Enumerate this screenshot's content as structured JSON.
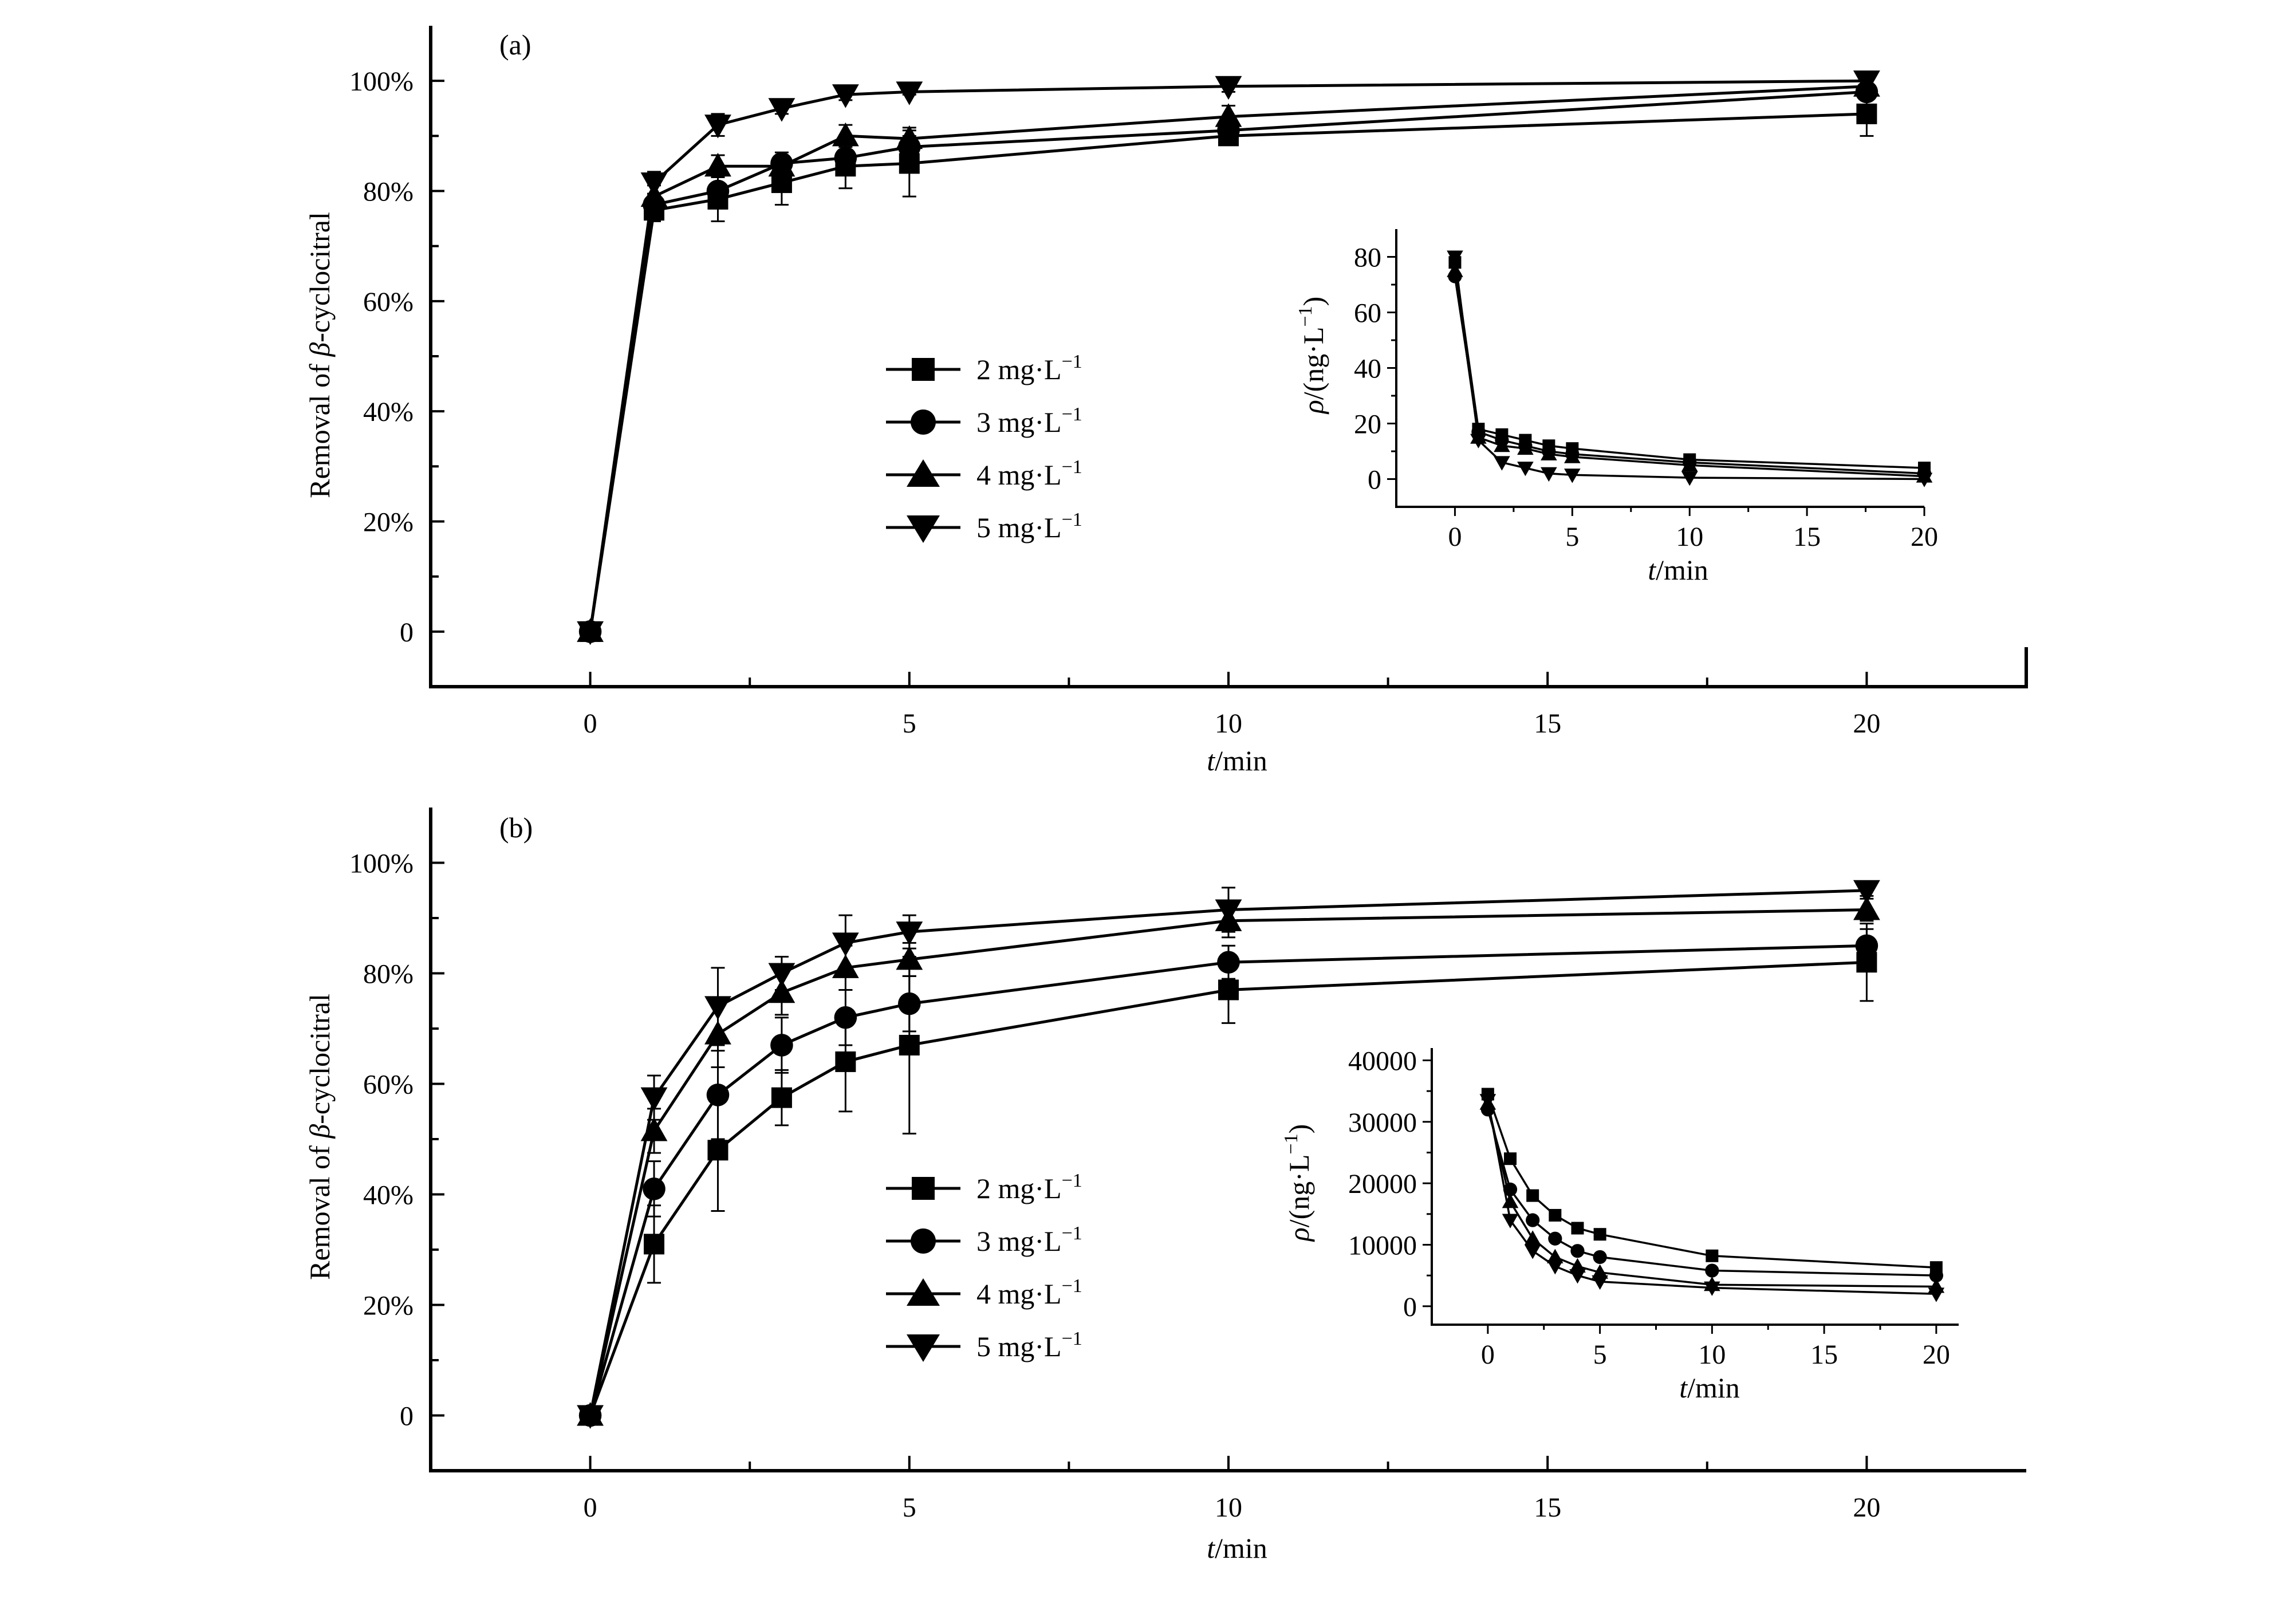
{
  "chart_data": [
    {
      "type": "line",
      "panel_label": "(a)",
      "xlabel_italic": "t",
      "xlabel_rest": "/min",
      "ylabel_prefix": "Removal of ",
      "ylabel_italic": "β",
      "ylabel_suffix": "-cyclocitral",
      "xlim": [
        -2.5,
        22.5
      ],
      "ylim": [
        -10,
        110
      ],
      "xticks": [
        0,
        5,
        10,
        15,
        20
      ],
      "xtick_labels": [
        "0",
        "5",
        "10",
        "15",
        "20"
      ],
      "yticks": [
        0,
        20,
        40,
        60,
        80,
        100
      ],
      "ytick_labels": [
        "0",
        "20%",
        "40%",
        "60%",
        "80%",
        "100%"
      ],
      "x": [
        0,
        1,
        2,
        3,
        4,
        5,
        10,
        20
      ],
      "series": [
        {
          "name": "2 mg·L",
          "superscript": "−1",
          "marker": "square",
          "values": [
            0,
            76.5,
            78.5,
            81.5,
            84.5,
            85,
            90,
            94
          ],
          "errors": [
            0,
            2,
            4,
            4,
            4,
            6,
            1,
            4
          ]
        },
        {
          "name": "3 mg·L",
          "superscript": "−1",
          "marker": "circle",
          "values": [
            0,
            77.5,
            80,
            85,
            86,
            88,
            91,
            98
          ],
          "errors": [
            0,
            2,
            3,
            2,
            3,
            2,
            1.5,
            1
          ]
        },
        {
          "name": "4 mg·L",
          "superscript": "−1",
          "marker": "triangle-up",
          "values": [
            0,
            79,
            84.5,
            84.5,
            90,
            89.5,
            93.5,
            99
          ],
          "errors": [
            0,
            2,
            2,
            2,
            2,
            2,
            2,
            1
          ]
        },
        {
          "name": "5 mg·L",
          "superscript": "−1",
          "marker": "triangle-down",
          "values": [
            0,
            81.5,
            92,
            95,
            97.5,
            98,
            99,
            100
          ],
          "errors": [
            0,
            2,
            2,
            1,
            1,
            0.5,
            1,
            0.5
          ]
        }
      ],
      "inset": {
        "type": "line",
        "xlabel_italic": "t",
        "xlabel_rest": "/min",
        "ylabel_italic": "ρ",
        "ylabel_rest": "/(ng·L",
        "ylabel_sup": "−1",
        "ylabel_close": ")",
        "xlim": [
          -2.5,
          20
        ],
        "ylim": [
          -10,
          90
        ],
        "xticks": [
          0,
          5,
          10,
          15,
          20
        ],
        "xtick_labels": [
          "0",
          "5",
          "10",
          "15",
          "20"
        ],
        "yticks": [
          0,
          20,
          40,
          60,
          80
        ],
        "ytick_labels": [
          "0",
          "20",
          "40",
          "60",
          "80"
        ],
        "x": [
          0,
          1,
          2,
          3,
          4,
          5,
          10,
          20
        ],
        "series": [
          {
            "marker": "square",
            "values": [
              78,
              18,
              16,
              14,
              12,
              11,
              7,
              4
            ]
          },
          {
            "marker": "circle",
            "values": [
              73,
              17,
              14,
              12,
              10,
              9,
              6,
              2
            ]
          },
          {
            "marker": "triangle-up",
            "values": [
              75,
              15,
              12,
              11,
              9,
              8,
              5,
              1
            ]
          },
          {
            "marker": "triangle-down",
            "values": [
              80,
              14,
              6,
              4,
              2,
              1.5,
              0.5,
              0
            ]
          }
        ]
      }
    },
    {
      "type": "line",
      "panel_label": "(b)",
      "xlabel_italic": "t",
      "xlabel_rest": "/min",
      "ylabel_prefix": "Removal of ",
      "ylabel_italic": "β",
      "ylabel_suffix": "-cyclocitral",
      "xlim": [
        -2.5,
        22.5
      ],
      "ylim": [
        -10,
        110
      ],
      "xticks": [
        0,
        5,
        10,
        15,
        20
      ],
      "xtick_labels": [
        "0",
        "5",
        "10",
        "15",
        "20"
      ],
      "yticks": [
        0,
        20,
        40,
        60,
        80,
        100
      ],
      "ytick_labels": [
        "0",
        "20%",
        "40%",
        "60%",
        "80%",
        "100%"
      ],
      "x": [
        0,
        1,
        2,
        3,
        4,
        5,
        10,
        20
      ],
      "series": [
        {
          "name": "2 mg·L",
          "superscript": "−1",
          "marker": "square",
          "values": [
            0,
            31,
            48,
            57.5,
            64,
            67,
            77,
            82
          ],
          "errors": [
            0,
            7,
            11,
            5,
            9,
            16,
            6,
            7
          ]
        },
        {
          "name": "3 mg·L",
          "superscript": "−1",
          "marker": "circle",
          "values": [
            0,
            41,
            58,
            67,
            72,
            74.5,
            82,
            85
          ],
          "errors": [
            0,
            5,
            8,
            5,
            5,
            5,
            3,
            3
          ]
        },
        {
          "name": "4 mg·L",
          "superscript": "−1",
          "marker": "triangle-up",
          "values": [
            0,
            51.5,
            69,
            76.5,
            81,
            82.5,
            89.5,
            91.5
          ],
          "errors": [
            0,
            4,
            6,
            4,
            4,
            3,
            3,
            2
          ]
        },
        {
          "name": "5 mg·L",
          "superscript": "−1",
          "marker": "triangle-down",
          "values": [
            0,
            57.5,
            74,
            80,
            85.5,
            87.5,
            91.5,
            95
          ],
          "errors": [
            0,
            4,
            7,
            3,
            5,
            3,
            4,
            1
          ]
        }
      ],
      "inset": {
        "type": "line",
        "xlabel_italic": "t",
        "xlabel_rest": "/min",
        "ylabel_italic": "ρ",
        "ylabel_rest": "/(ng·L",
        "ylabel_sup": "−1",
        "ylabel_close": ")",
        "xlim": [
          -2.5,
          21
        ],
        "ylim": [
          -3000,
          42000
        ],
        "xticks": [
          0,
          5,
          10,
          15,
          20
        ],
        "xtick_labels": [
          "0",
          "5",
          "10",
          "15",
          "20"
        ],
        "yticks": [
          0,
          10000,
          20000,
          30000,
          40000
        ],
        "ytick_labels": [
          "0",
          "10000",
          "20000",
          "30000",
          "40000"
        ],
        "x": [
          0,
          1,
          2,
          3,
          4,
          5,
          10,
          20
        ],
        "series": [
          {
            "marker": "square",
            "values": [
              34500,
              24000,
              18000,
              14800,
              12700,
              11700,
              8200,
              6300
            ]
          },
          {
            "marker": "circle",
            "values": [
              32000,
              19000,
              14000,
              11000,
              9000,
              8000,
              5800,
              5000
            ]
          },
          {
            "marker": "triangle-up",
            "values": [
              33000,
              17000,
              11000,
              8000,
              6500,
              5500,
              3500,
              3200
            ]
          },
          {
            "marker": "triangle-down",
            "values": [
              33500,
              14000,
              9000,
              6500,
              5000,
              4000,
              3000,
              2000
            ]
          }
        ]
      }
    }
  ]
}
